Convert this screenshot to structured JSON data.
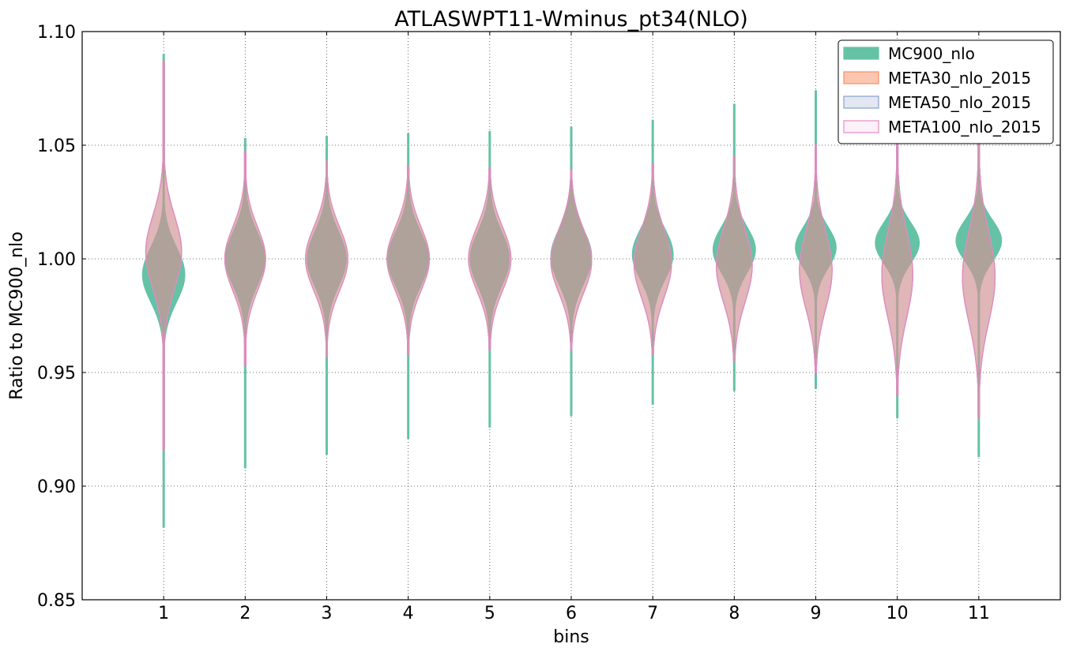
{
  "chart_data": {
    "type": "violin",
    "title": "ATLASWPT11-Wminus_pt34(NLO)",
    "xlabel": "bins",
    "ylabel": "Ratio to MC900_nlo",
    "ylim": [
      0.85,
      1.1
    ],
    "xlim": [
      0,
      12
    ],
    "yticks": [
      "0.85",
      "0.90",
      "0.95",
      "1.00",
      "1.05",
      "1.10"
    ],
    "categories": [
      "1",
      "2",
      "3",
      "4",
      "5",
      "6",
      "7",
      "8",
      "9",
      "10",
      "11"
    ],
    "grid": true,
    "legend_position": "top-right",
    "series": [
      {
        "name": "MC900_nlo",
        "fill": "#66c2a5",
        "stroke": "#66c2a5",
        "opacity": 1.0,
        "min": [
          0.882,
          0.908,
          0.914,
          0.921,
          0.926,
          0.931,
          0.936,
          0.942,
          0.943,
          0.93,
          0.913
        ],
        "max": [
          1.09,
          1.053,
          1.054,
          1.055,
          1.056,
          1.058,
          1.061,
          1.068,
          1.074,
          1.078,
          1.083
        ],
        "center": [
          0.993,
          1.0,
          1.0,
          1.0,
          1.0,
          1.001,
          1.002,
          1.004,
          1.005,
          1.007,
          1.008
        ],
        "sigma": [
          0.012,
          0.012,
          0.012,
          0.012,
          0.012,
          0.012,
          0.011,
          0.01,
          0.009,
          0.009,
          0.009
        ],
        "halfwidth": [
          0.26,
          0.24,
          0.24,
          0.25,
          0.24,
          0.25,
          0.25,
          0.26,
          0.25,
          0.27,
          0.28
        ]
      },
      {
        "name": "META30_nlo_2015",
        "fill": "#fc8d62",
        "stroke": "#fc8d62",
        "opacity": 0.5,
        "min": [
          0.916,
          0.953,
          0.957,
          0.958,
          0.96,
          0.96,
          0.958,
          0.955,
          0.95,
          0.94,
          0.93
        ],
        "max": [
          1.087,
          1.047,
          1.043,
          1.041,
          1.04,
          1.039,
          1.042,
          1.045,
          1.05,
          1.055,
          1.06
        ],
        "center": [
          1.003,
          1.0,
          1.0,
          1.0,
          1.0,
          0.999,
          0.998,
          0.997,
          0.995,
          0.993,
          0.992
        ],
        "sigma": [
          0.016,
          0.014,
          0.014,
          0.014,
          0.014,
          0.014,
          0.015,
          0.016,
          0.017,
          0.019,
          0.02
        ],
        "halfwidth": [
          0.22,
          0.25,
          0.26,
          0.26,
          0.26,
          0.25,
          0.23,
          0.22,
          0.2,
          0.19,
          0.2
        ]
      },
      {
        "name": "META50_nlo_2015",
        "fill": "#8da0cb",
        "stroke": "#8da0cb",
        "opacity": 0.25,
        "min": [
          0.916,
          0.953,
          0.957,
          0.958,
          0.96,
          0.96,
          0.958,
          0.955,
          0.949,
          0.94,
          0.93
        ],
        "max": [
          1.087,
          1.047,
          1.043,
          1.041,
          1.04,
          1.039,
          1.042,
          1.045,
          1.05,
          1.055,
          1.06
        ],
        "center": [
          1.003,
          1.0,
          1.0,
          1.0,
          1.0,
          0.999,
          0.998,
          0.997,
          0.995,
          0.993,
          0.992
        ],
        "sigma": [
          0.016,
          0.014,
          0.014,
          0.014,
          0.014,
          0.014,
          0.015,
          0.016,
          0.017,
          0.019,
          0.02
        ],
        "halfwidth": [
          0.22,
          0.25,
          0.26,
          0.26,
          0.26,
          0.25,
          0.23,
          0.22,
          0.2,
          0.19,
          0.2
        ]
      },
      {
        "name": "META100_nlo_2015",
        "fill": "#e78ac3",
        "stroke": "#e78ac3",
        "opacity": 0.12,
        "min": [
          0.916,
          0.953,
          0.957,
          0.958,
          0.96,
          0.96,
          0.958,
          0.955,
          0.95,
          0.94,
          0.93
        ],
        "max": [
          1.087,
          1.047,
          1.043,
          1.041,
          1.04,
          1.039,
          1.042,
          1.045,
          1.05,
          1.055,
          1.06
        ],
        "center": [
          1.003,
          1.0,
          1.0,
          1.0,
          1.0,
          0.999,
          0.998,
          0.997,
          0.995,
          0.993,
          0.992
        ],
        "sigma": [
          0.016,
          0.014,
          0.014,
          0.014,
          0.014,
          0.014,
          0.015,
          0.016,
          0.017,
          0.019,
          0.02
        ],
        "halfwidth": [
          0.22,
          0.25,
          0.26,
          0.26,
          0.26,
          0.25,
          0.23,
          0.22,
          0.2,
          0.19,
          0.2
        ]
      }
    ]
  }
}
